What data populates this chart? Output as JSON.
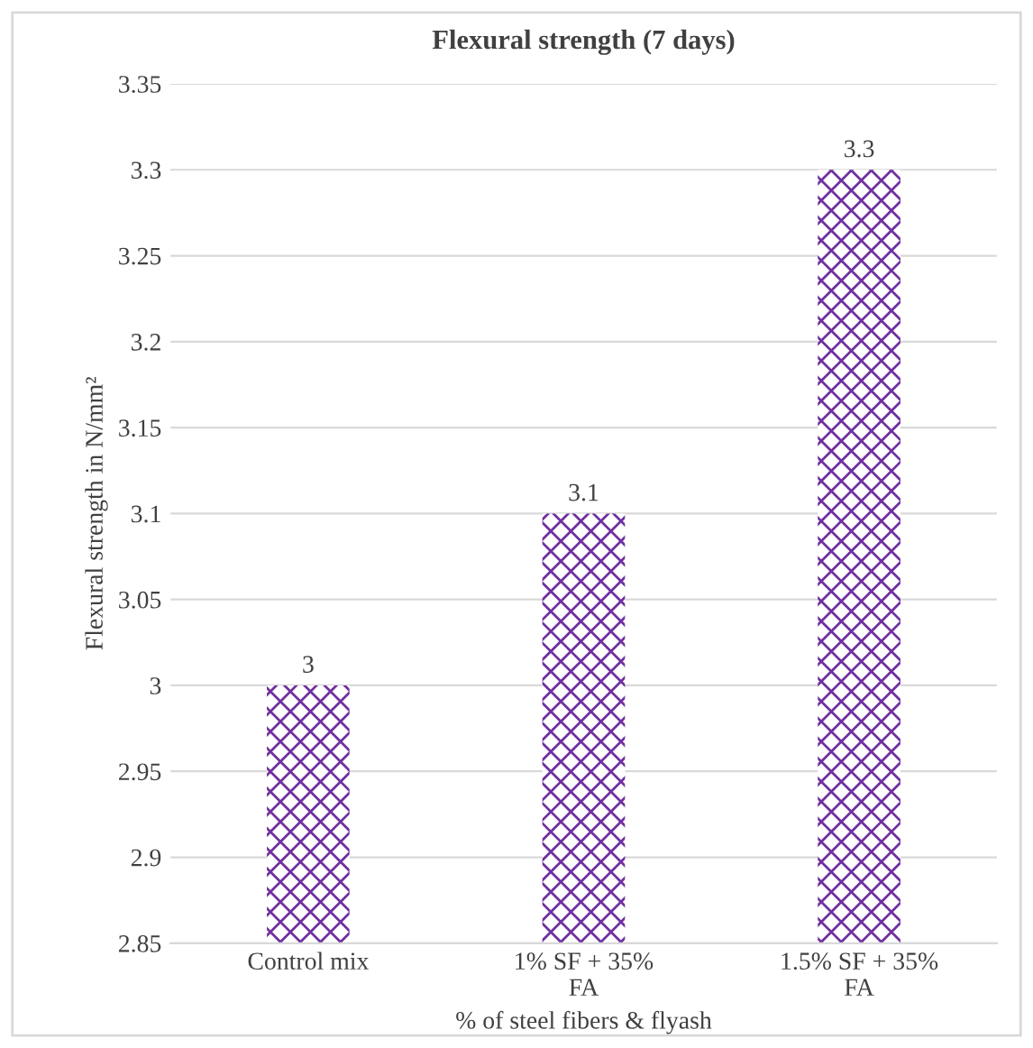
{
  "chart_data": {
    "type": "bar",
    "title": "Flexural strength (7 days)",
    "xlabel": "% of steel fibers & flyash",
    "ylabel": "Flexural strength in N/mm²",
    "categories": [
      "Control mix",
      "1% SF + 35% FA",
      "1.5% SF + 35% FA"
    ],
    "values": [
      3,
      3.1,
      3.3
    ],
    "color": "#7030a0",
    "ylim": [
      2.85,
      3.35
    ],
    "yticks": [
      2.85,
      2.9,
      2.95,
      3,
      3.05,
      3.1,
      3.15,
      3.2,
      3.25,
      3.3,
      3.35
    ],
    "grid": "y",
    "data_labels": true
  }
}
